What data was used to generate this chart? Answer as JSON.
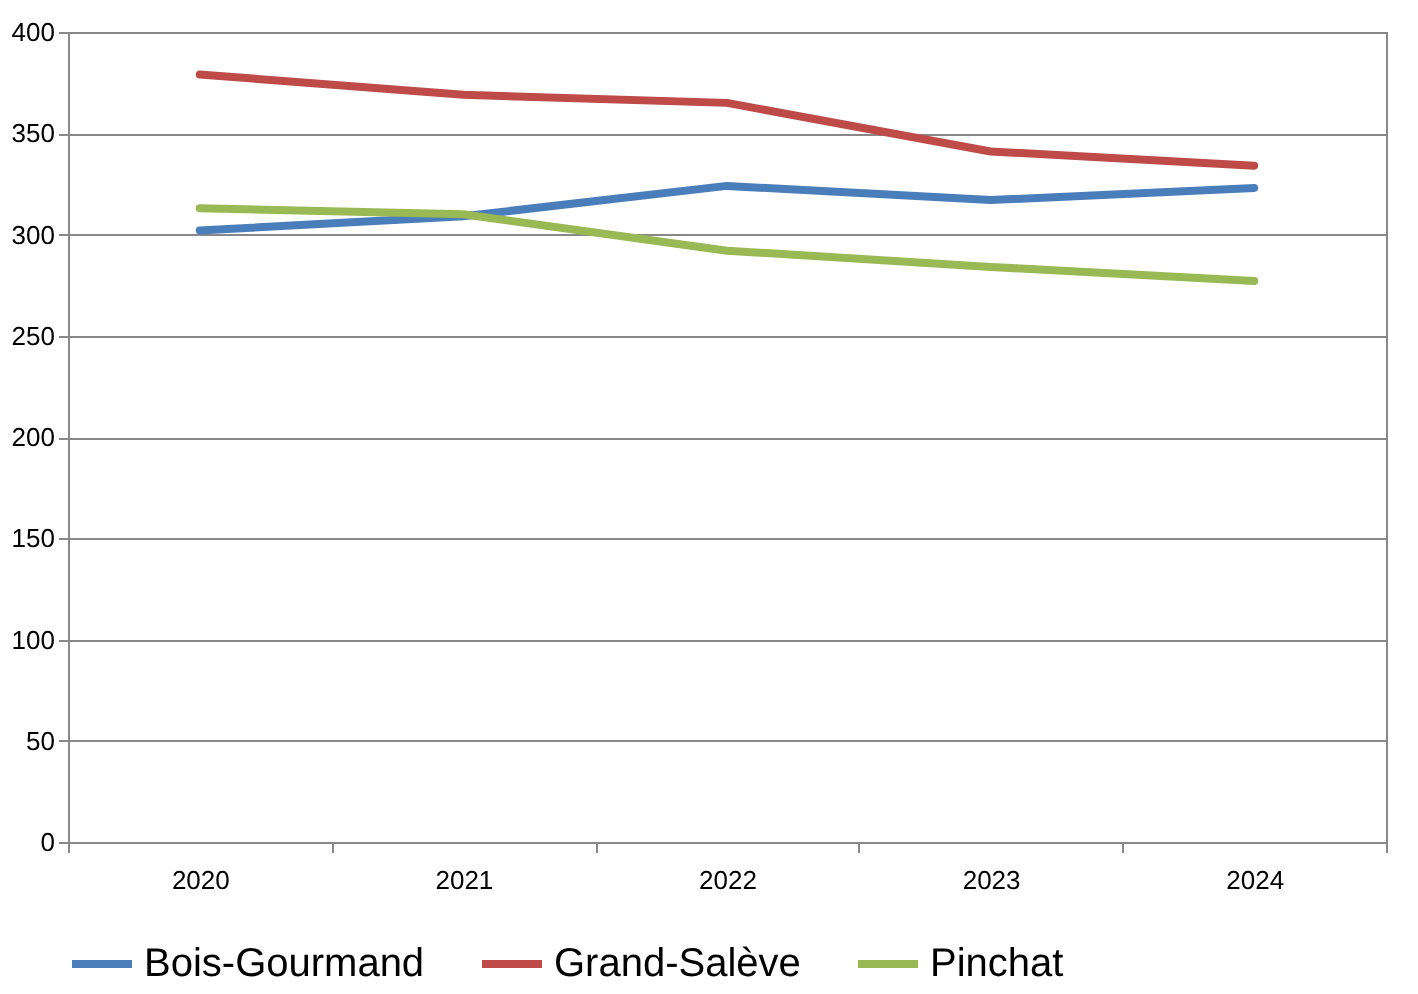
{
  "chart_data": {
    "type": "line",
    "categories": [
      "2020",
      "2021",
      "2022",
      "2023",
      "2024"
    ],
    "series": [
      {
        "name": "Bois-Gourmand",
        "color": "#4a7ebb",
        "values": [
          302,
          309,
          324,
          317,
          323
        ]
      },
      {
        "name": "Grand-Salève",
        "color": "#be4b48",
        "values": [
          379,
          369,
          365,
          341,
          334
        ]
      },
      {
        "name": "Pinchat",
        "color": "#98b954",
        "values": [
          313,
          310,
          292,
          284,
          277
        ]
      }
    ],
    "ylim": [
      0,
      400
    ],
    "yticks": [
      0,
      50,
      100,
      150,
      200,
      250,
      300,
      350,
      400
    ],
    "grid": "y",
    "legend": "bottom",
    "marker": "none",
    "line_style": "solid"
  }
}
